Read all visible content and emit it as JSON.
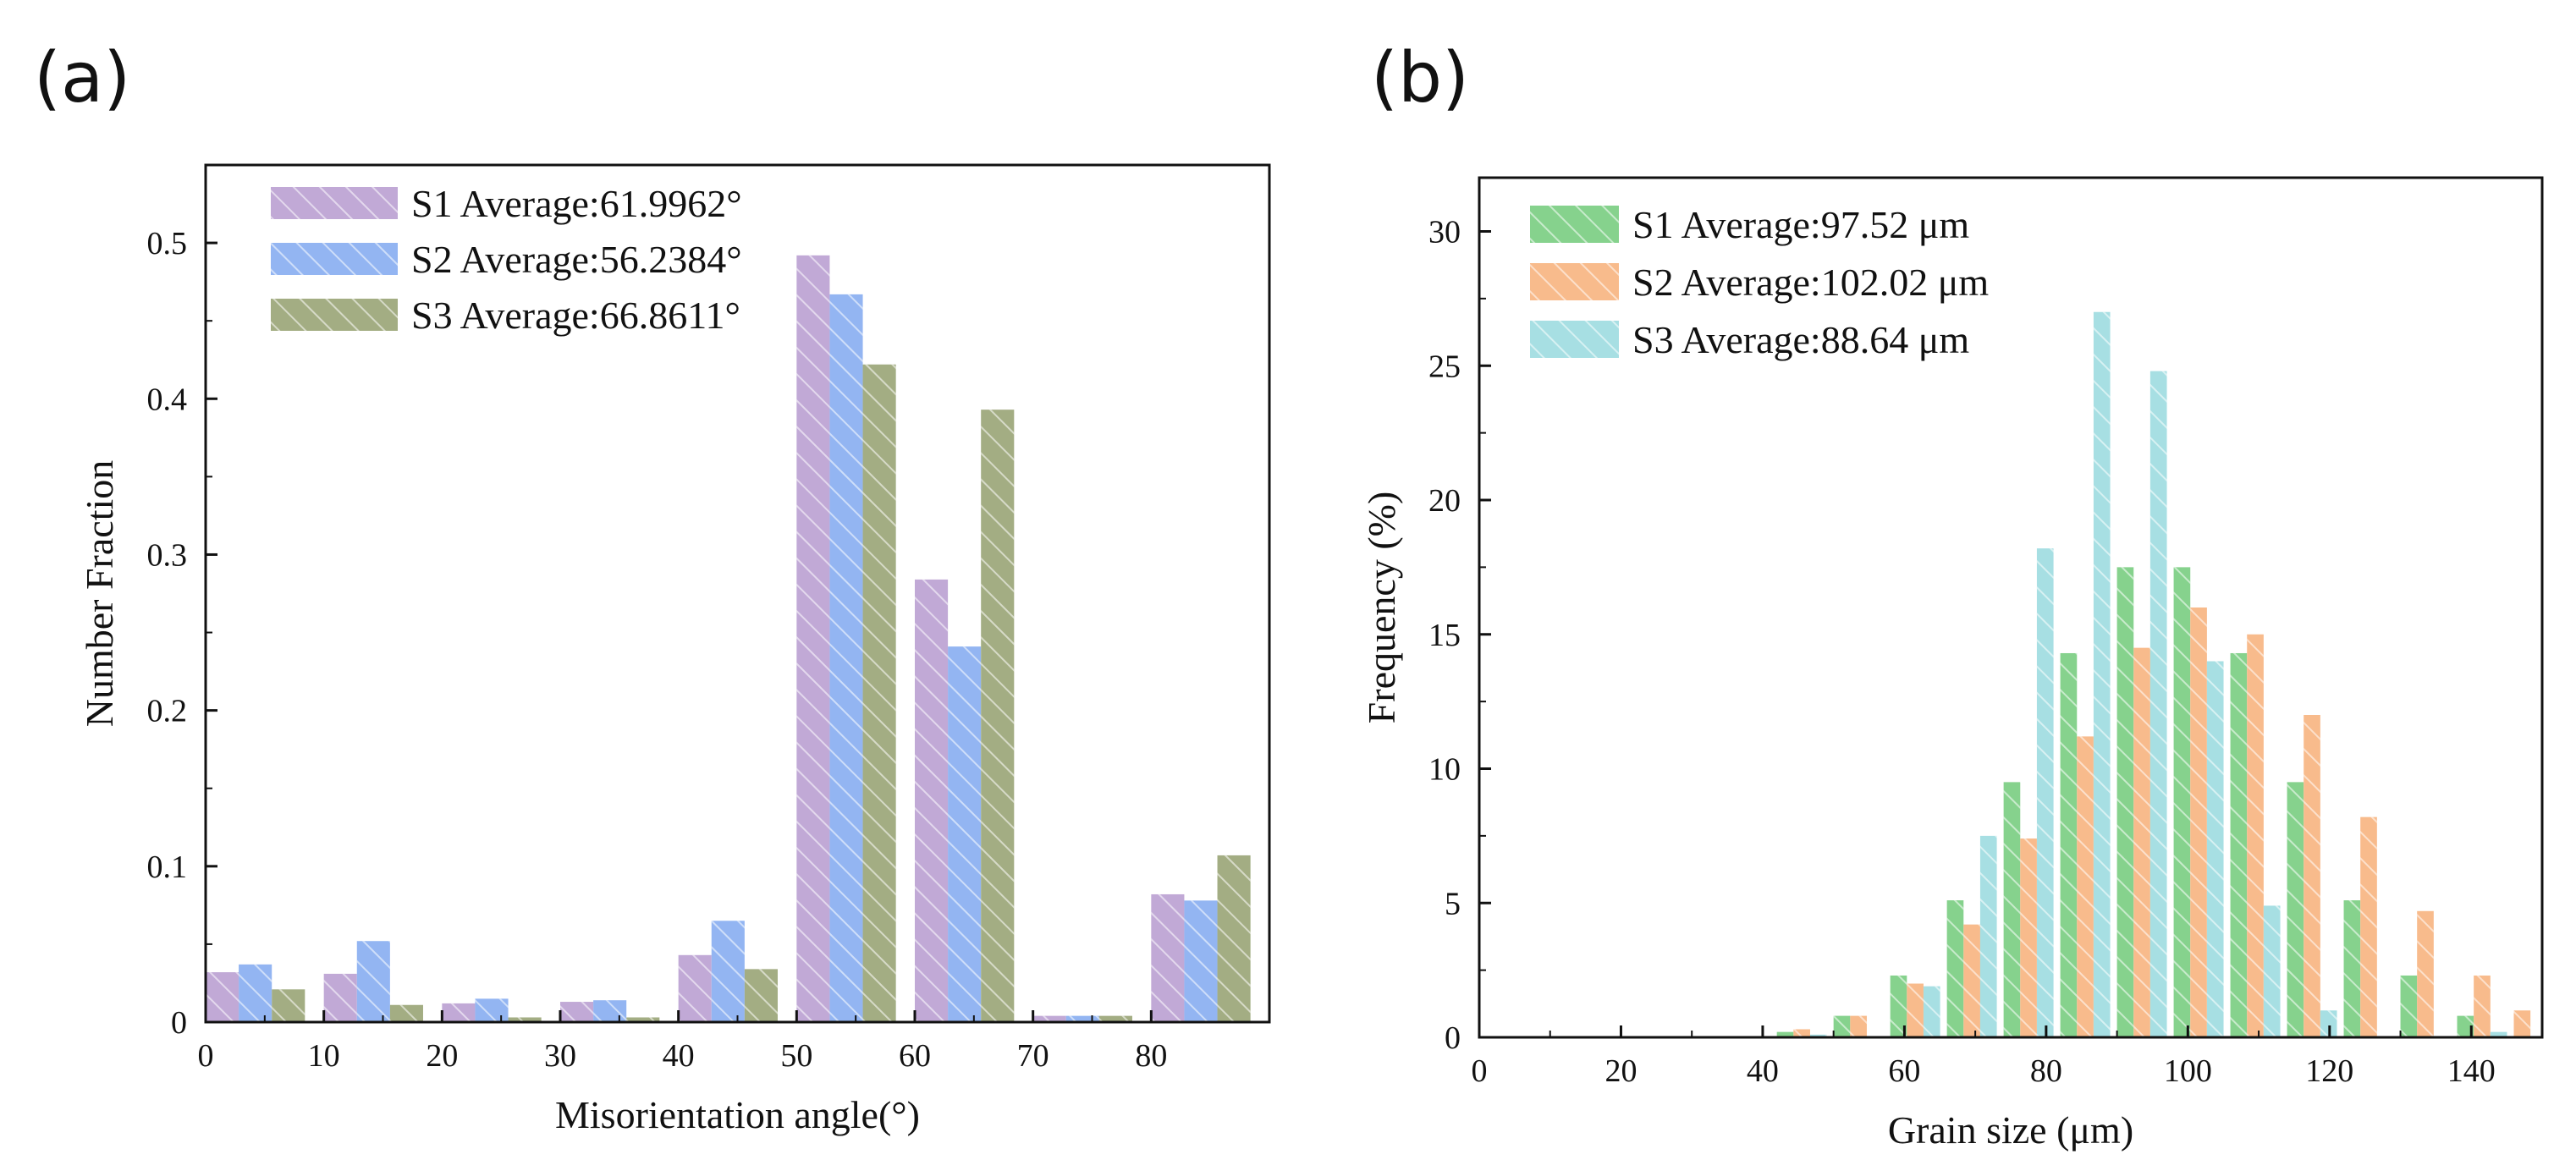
{
  "chart_data": [
    {
      "panel_label": "(a)",
      "type": "bar",
      "xlabel": "Misorientation angle(°)",
      "ylabel": "Number Fraction",
      "xlim": [
        0,
        90
      ],
      "ylim": [
        0,
        0.55
      ],
      "xticks": [
        0,
        10,
        20,
        30,
        40,
        50,
        60,
        70,
        80
      ],
      "yticks": [
        0,
        0.1,
        0.2,
        0.3,
        0.4,
        0.5
      ],
      "ytick_labels": [
        "0",
        "0.1",
        "0.2",
        "0.3",
        "0.4",
        "0.5"
      ],
      "bins": [
        0,
        10,
        20,
        30,
        40,
        50,
        60,
        70,
        80
      ],
      "bin_width": 10,
      "legend_position": "top-left",
      "series": [
        {
          "name": "S1",
          "legend": "S1  Average:61.9962°",
          "color": "#c1a9d6",
          "values": [
            0.032,
            0.031,
            0.012,
            0.013,
            0.043,
            0.492,
            0.284,
            0.004,
            0.082
          ]
        },
        {
          "name": "S2",
          "legend": "S2  Average:56.2384°",
          "color": "#93b5f2",
          "values": [
            0.037,
            0.052,
            0.015,
            0.014,
            0.065,
            0.467,
            0.241,
            0.004,
            0.078
          ]
        },
        {
          "name": "S3",
          "legend": "S3  Average:66.8611°",
          "color": "#a3ad83",
          "values": [
            0.021,
            0.011,
            0.003,
            0.003,
            0.034,
            0.422,
            0.393,
            0.004,
            0.107
          ]
        }
      ]
    },
    {
      "panel_label": "(b)",
      "type": "bar",
      "xlabel": "Grain size (μm)",
      "ylabel": "Frequency (%)",
      "xlim": [
        0,
        150
      ],
      "ylim": [
        0,
        32
      ],
      "xticks": [
        0,
        20,
        40,
        60,
        80,
        100,
        120,
        140
      ],
      "yticks": [
        0,
        5,
        10,
        15,
        20,
        25,
        30
      ],
      "ytick_labels": [
        "0",
        "5",
        "10",
        "15",
        "20",
        "25",
        "30"
      ],
      "bins": [
        42,
        50,
        58,
        66,
        74,
        82,
        90,
        98,
        106,
        114,
        122,
        130,
        138
      ],
      "bin_width": 8,
      "legend_position": "top-left",
      "series": [
        {
          "name": "S1",
          "legend": "S1 Average:97.52 μm",
          "color": "#86d28d",
          "values": [
            0.2,
            0.8,
            2.3,
            5.1,
            9.5,
            14.3,
            17.5,
            17.5,
            14.3,
            9.5,
            5.1,
            2.3,
            0.8
          ]
        },
        {
          "name": "S2",
          "legend": "S2 Average:102.02 μm",
          "color": "#f8bb8c",
          "values": [
            0.3,
            0.8,
            2.0,
            4.2,
            7.4,
            11.2,
            14.5,
            16.0,
            15.0,
            12.0,
            8.2,
            4.7,
            2.3
          ]
        },
        {
          "name": "S3",
          "legend": "S3 Average:88.64 μm",
          "color": "#a7dfe3",
          "values": [
            0.1,
            0.0,
            1.9,
            7.5,
            18.2,
            27.0,
            24.8,
            14.0,
            4.9,
            1.0,
            0.0,
            0.0,
            0.2
          ]
        }
      ],
      "extra_bar": {
        "series": "S2",
        "bin": 146,
        "value": 1.0
      }
    }
  ]
}
